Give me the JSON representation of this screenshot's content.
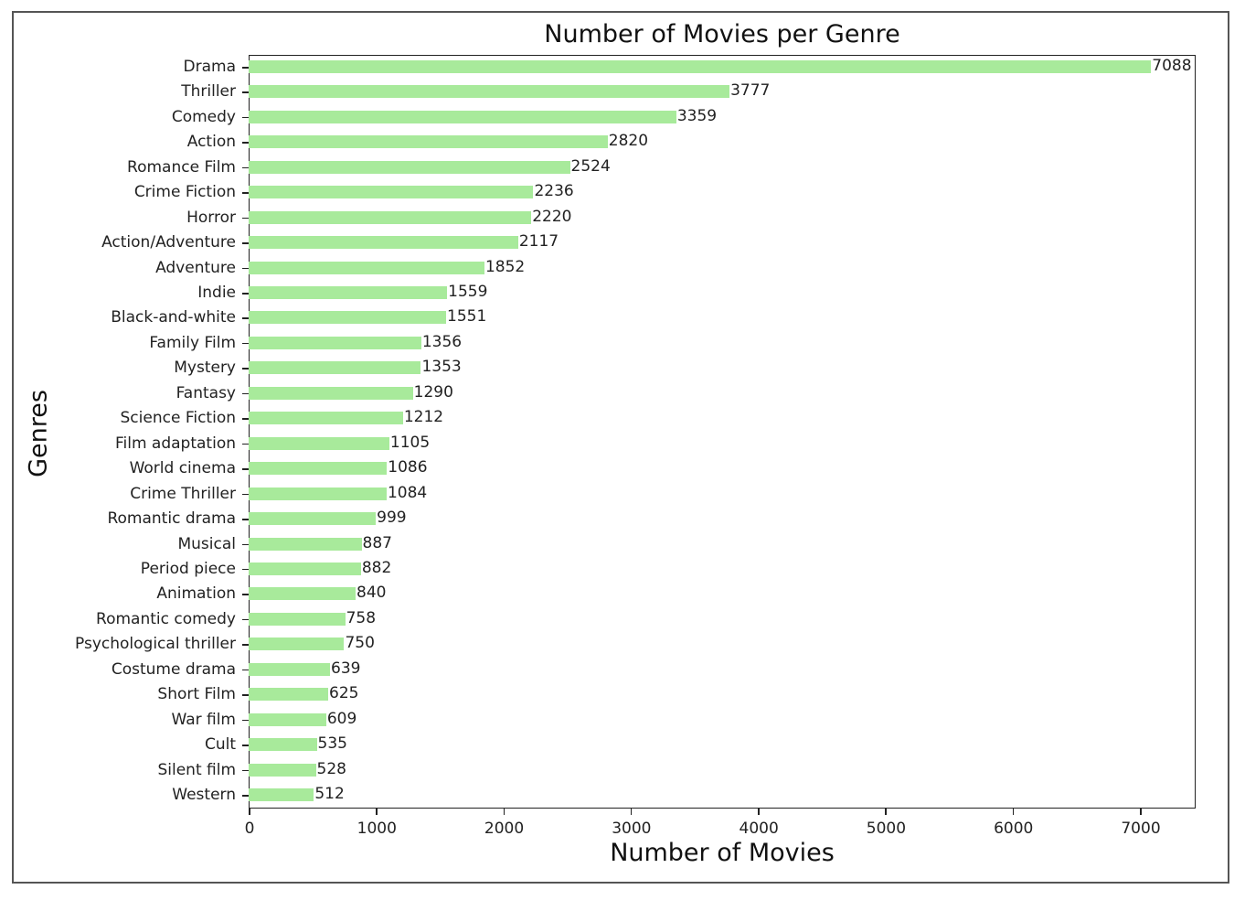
{
  "chart_data": {
    "type": "bar",
    "orientation": "horizontal",
    "title": "Number of Movies per Genre",
    "xlabel": "Number of Movies",
    "ylabel": "Genres",
    "xlim": [
      0,
      7442
    ],
    "xticks": [
      0,
      1000,
      2000,
      3000,
      4000,
      5000,
      6000,
      7000
    ],
    "grid": false,
    "bar_color": "#a8ea9b",
    "categories": [
      "Drama",
      "Thriller",
      "Comedy",
      "Action",
      "Romance Film",
      "Crime Fiction",
      "Horror",
      "Action/Adventure",
      "Adventure",
      "Indie",
      "Black-and-white",
      "Family Film",
      "Mystery",
      "Fantasy",
      "Science Fiction",
      "Film adaptation",
      "World cinema",
      "Crime Thriller",
      "Romantic drama",
      "Musical",
      "Period piece",
      "Animation",
      "Romantic comedy",
      "Psychological thriller",
      "Costume drama",
      "Short Film",
      "War film",
      "Cult",
      "Silent film",
      "Western"
    ],
    "values": [
      7088,
      3777,
      3359,
      2820,
      2524,
      2236,
      2220,
      2117,
      1852,
      1559,
      1551,
      1356,
      1353,
      1290,
      1212,
      1105,
      1086,
      1084,
      999,
      887,
      882,
      840,
      758,
      750,
      639,
      625,
      609,
      535,
      528,
      512
    ]
  }
}
